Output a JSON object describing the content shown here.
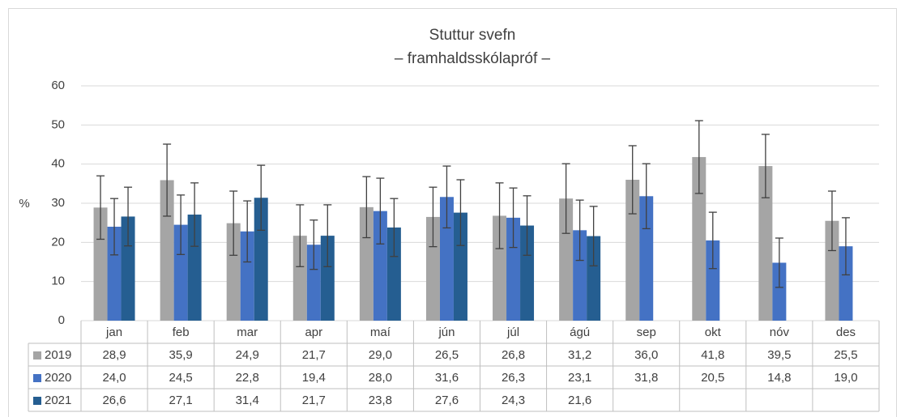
{
  "chart_data": {
    "type": "bar",
    "title": "Stuttur svefn",
    "subtitle": "– framhaldsskólapróf –",
    "y_label": "%",
    "categories": [
      "jan",
      "feb",
      "mar",
      "apr",
      "maí",
      "jún",
      "júl",
      "ágú",
      "sep",
      "okt",
      "nóv",
      "des"
    ],
    "series": [
      {
        "name": "2019",
        "color": "#a5a5a5",
        "values": [
          28.9,
          35.9,
          24.9,
          21.7,
          29.0,
          26.5,
          26.8,
          31.2,
          36.0,
          41.8,
          39.5,
          25.5
        ],
        "value_labels": [
          "28,9",
          "35,9",
          "24,9",
          "21,7",
          "29,0",
          "26,5",
          "26,8",
          "31,2",
          "36,0",
          "41,8",
          "39,5",
          "25,5"
        ],
        "errors": [
          8.1,
          9.2,
          8.2,
          7.9,
          7.8,
          7.6,
          8.4,
          8.9,
          8.7,
          9.3,
          8.1,
          7.6
        ]
      },
      {
        "name": "2020",
        "color": "#4472c4",
        "values": [
          24.0,
          24.5,
          22.8,
          19.4,
          28.0,
          31.6,
          26.3,
          23.1,
          31.8,
          20.5,
          14.8,
          19.0
        ],
        "value_labels": [
          "24,0",
          "24,5",
          "22,8",
          "19,4",
          "28,0",
          "31,6",
          "26,3",
          "23,1",
          "31,8",
          "20,5",
          "14,8",
          "19,0"
        ],
        "errors": [
          7.2,
          7.6,
          7.8,
          6.3,
          8.4,
          7.9,
          7.6,
          7.7,
          8.3,
          7.2,
          6.3,
          7.3
        ]
      },
      {
        "name": "2021",
        "color": "#255e91",
        "values": [
          26.6,
          27.1,
          31.4,
          21.7,
          23.8,
          27.6,
          24.3,
          21.6,
          null,
          null,
          null,
          null
        ],
        "value_labels": [
          "26,6",
          "27,1",
          "31,4",
          "21,7",
          "23,8",
          "27,6",
          "24,3",
          "21,6",
          null,
          null,
          null,
          null
        ],
        "errors": [
          7.5,
          8.1,
          8.3,
          7.9,
          7.4,
          8.4,
          7.6,
          7.6,
          null,
          null,
          null,
          null
        ]
      }
    ],
    "ylim": [
      0,
      60
    ],
    "yticks": [
      0,
      10,
      20,
      30,
      40,
      50,
      60
    ],
    "grid": true
  }
}
